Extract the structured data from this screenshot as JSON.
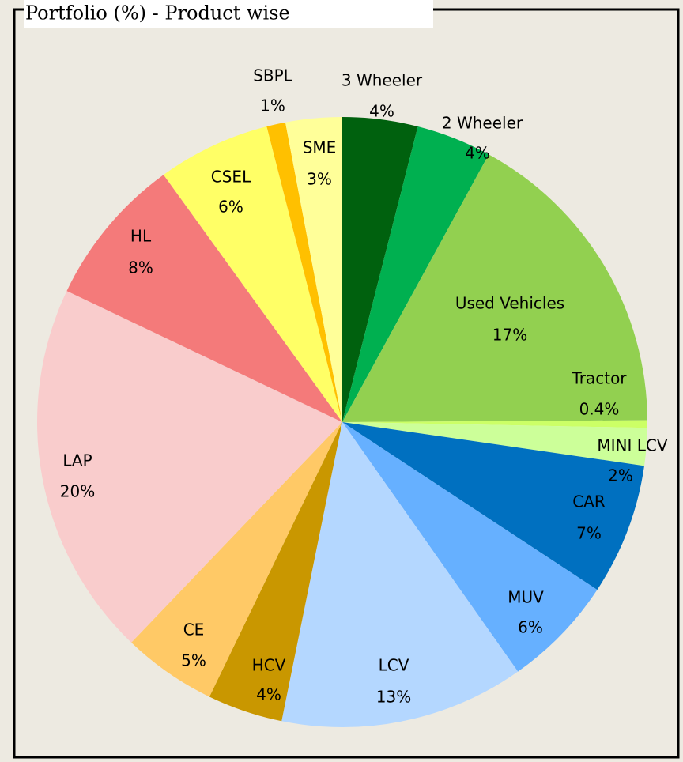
{
  "chart_data": {
    "type": "pie",
    "title": "Portfolio (%) - Product wise",
    "categories": [
      "3 Wheeler",
      "2 Wheeler",
      "Used Vehicles",
      "Tractor",
      "MINI LCV",
      "CAR",
      "MUV",
      "LCV",
      "HCV",
      "CE",
      "LAP",
      "HL",
      "CSEL",
      "SBPL",
      "SME"
    ],
    "values": [
      4,
      4,
      17,
      0.4,
      2,
      7,
      6,
      13,
      4,
      5,
      20,
      8,
      6,
      1,
      3
    ],
    "value_labels": [
      "4%",
      "4%",
      "17%",
      "0.4%",
      "2%",
      "7%",
      "6%",
      "13%",
      "4%",
      "5%",
      "20%",
      "8%",
      "6%",
      "1%",
      "3%"
    ],
    "colors": [
      "#00610e",
      "#00b050",
      "#92d050",
      "#ccff66",
      "#ccff99",
      "#0070c0",
      "#66b0ff",
      "#b4d7ff",
      "#c99700",
      "#ffc966",
      "#f9cccc",
      "#f47a7a",
      "#ffff66",
      "#ffc000",
      "#ffff99"
    ]
  }
}
